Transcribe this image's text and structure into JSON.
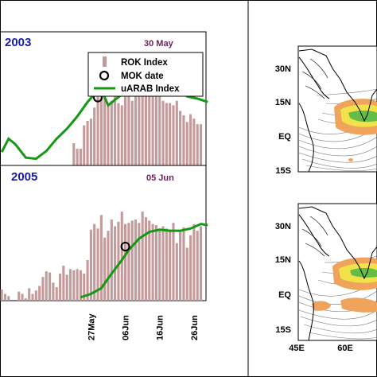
{
  "chart_data": [
    {
      "type": "bar",
      "panel": "2003",
      "title": "2003",
      "date_label": "30 May",
      "legend": [
        "ROK Index",
        "MOK date",
        "uARAB Index"
      ],
      "legend_placement": "top-right",
      "x_day_start": 1,
      "x_days": 60,
      "x_tick_labels": [
        "27May",
        "06Jun",
        "16Jun",
        "26Jun"
      ],
      "x_tick_days": [
        27,
        37,
        47,
        57
      ],
      "y_range": [
        0,
        10
      ],
      "series": [
        {
          "name": "ROK Index",
          "kind": "bar",
          "x": [
            22,
            23,
            24,
            25,
            26,
            27,
            28,
            29,
            30,
            31,
            32,
            33,
            34,
            35,
            36,
            37,
            38,
            39,
            40,
            41,
            42,
            43,
            44,
            45,
            46,
            47,
            48,
            49,
            50,
            51,
            52,
            53,
            54,
            55,
            56,
            57,
            58,
            59
          ],
          "values": [
            2.0,
            1.5,
            1.5,
            3.6,
            4.0,
            4.2,
            5.2,
            8.1,
            9.3,
            8.3,
            5.5,
            5.8,
            6.6,
            5.6,
            5.4,
            8.3,
            8.1,
            5.8,
            8.0,
            6.6,
            8.3,
            6.7,
            8.0,
            6.9,
            6.9,
            6.3,
            5.8,
            5.6,
            5.6,
            5.4,
            5.8,
            4.9,
            4.5,
            3.9,
            4.6,
            4.2,
            3.7,
            3.7
          ]
        },
        {
          "name": "uARAB Index",
          "kind": "line",
          "x": [
            1,
            3,
            5,
            8,
            11,
            14,
            17,
            20,
            23,
            26,
            28,
            29,
            30,
            31,
            32,
            34,
            37,
            40,
            43,
            46,
            49,
            52,
            55,
            58,
            61
          ],
          "values": [
            1.2,
            2.4,
            1.9,
            0.7,
            0.6,
            1.3,
            2.4,
            3.3,
            4.4,
            5.7,
            6.4,
            6.8,
            6.8,
            6.1,
            5.4,
            5.9,
            6.6,
            7.0,
            7.2,
            7.4,
            7.4,
            7.0,
            6.2,
            6.0,
            5.7
          ]
        },
        {
          "name": "MOK date",
          "kind": "marker",
          "x": [
            29
          ],
          "values": [
            6.1
          ]
        }
      ]
    },
    {
      "type": "bar",
      "panel": "2005",
      "title": "2005",
      "date_label": "05 Jun",
      "x_day_start": 1,
      "x_days": 60,
      "x_tick_labels": [
        "27May",
        "06Jun",
        "16Jun",
        "26Jun"
      ],
      "x_tick_days": [
        27,
        37,
        47,
        57
      ],
      "y_range": [
        0,
        10
      ],
      "series": [
        {
          "name": "ROK Index",
          "kind": "bar",
          "x": [
            1,
            2,
            3,
            6,
            7,
            8,
            9,
            10,
            11,
            12,
            13,
            14,
            15,
            16,
            17,
            18,
            19,
            20,
            21,
            22,
            23,
            24,
            25,
            26,
            27,
            28,
            29,
            30,
            31,
            32,
            33,
            34,
            35,
            36,
            37,
            38,
            39,
            40,
            41,
            42,
            43,
            44,
            45,
            46,
            47,
            48,
            49,
            50,
            51,
            52,
            53,
            54,
            55,
            56,
            57,
            58,
            59
          ],
          "values": [
            1.0,
            0.6,
            0.4,
            0.8,
            0.6,
            0.2,
            1.1,
            0.6,
            0.9,
            1.3,
            2.1,
            2.6,
            2.5,
            1.6,
            1.2,
            2.4,
            3.1,
            2.3,
            2.8,
            2.7,
            2.8,
            2.7,
            2.4,
            3.6,
            6.3,
            6.8,
            6.4,
            7.6,
            5.6,
            6.2,
            7.2,
            6.6,
            7.0,
            7.9,
            6.8,
            6.9,
            7.1,
            7.2,
            6.9,
            7.9,
            7.4,
            7.1,
            6.8,
            6.7,
            6.4,
            6.6,
            6.4,
            6.3,
            6.9,
            5.1,
            6.1,
            6.5,
            4.7,
            5.8,
            6.8,
            6.2,
            6.6
          ]
        },
        {
          "name": "uARAB Index",
          "kind": "line",
          "x": [
            24,
            27,
            30,
            33,
            36,
            38,
            41,
            44,
            47,
            50,
            53,
            56,
            59,
            61
          ],
          "values": [
            0.3,
            0.6,
            1.1,
            2.4,
            3.6,
            4.5,
            5.5,
            6.1,
            6.3,
            6.2,
            6.2,
            6.4,
            6.8,
            6.7
          ]
        },
        {
          "name": "MOK date",
          "kind": "marker",
          "x": [
            37
          ],
          "values": [
            4.8
          ]
        }
      ]
    },
    {
      "type": "heatmap",
      "panel": "map-top",
      "lat_labels": [
        "30N",
        "15N",
        "EQ",
        "15S"
      ],
      "lon_labels": []
    },
    {
      "type": "heatmap",
      "panel": "map-bottom",
      "lat_labels": [
        "30N",
        "15N",
        "EQ",
        "15S"
      ],
      "lon_labels": [
        "45E",
        "60E"
      ]
    }
  ],
  "colors": {
    "bar": "#c49a9a",
    "line": "#159915",
    "title": "#1a1aa8",
    "date": "#6b1f5a",
    "shade_orange": "#f0a35a",
    "shade_yellow": "#f2e24a",
    "shade_green": "#63bd46"
  }
}
